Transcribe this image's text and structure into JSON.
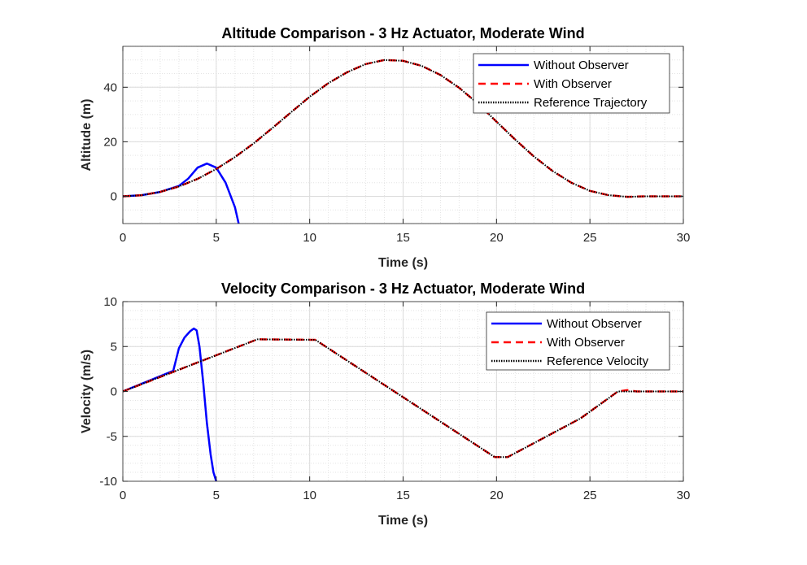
{
  "colors": {
    "without": "#0000ff",
    "with": "#ff0000",
    "reference": "#000000",
    "grid": "#dddddd",
    "axis": "#262626"
  },
  "chart_data": [
    {
      "type": "line",
      "title": "Altitude Comparison - 3 Hz Actuator, Moderate Wind",
      "xlabel": "Time (s)",
      "ylabel": "Altitude (m)",
      "xlim": [
        0,
        30
      ],
      "ylim": [
        -10,
        55
      ],
      "xticks": [
        0,
        5,
        10,
        15,
        20,
        25,
        30
      ],
      "yticks": [
        0,
        20,
        40
      ],
      "grid": "on, with minor grid",
      "legend_placement": "top-right",
      "series": [
        {
          "name": "Without Observer",
          "style": "solid",
          "color": "#0000ff",
          "x": [
            0,
            1,
            2,
            3,
            3.5,
            4,
            4.5,
            5,
            5.5,
            6,
            6.2
          ],
          "y": [
            0,
            0.4,
            1.6,
            3.8,
            6.5,
            10.5,
            12,
            10.5,
            5,
            -4,
            -10
          ]
        },
        {
          "name": "With Observer",
          "style": "dashed",
          "color": "#ff0000",
          "x": [
            0,
            1,
            2,
            3,
            4,
            5,
            6,
            7,
            8,
            9,
            10,
            11,
            12,
            13,
            14,
            15,
            16,
            17,
            18,
            19,
            20,
            21,
            22,
            23,
            24,
            25,
            26,
            27,
            28,
            29,
            30
          ],
          "y": [
            0,
            0.4,
            1.6,
            3.6,
            6.4,
            10,
            14.4,
            19.4,
            25,
            30.8,
            36.5,
            41.5,
            45.5,
            48.5,
            50,
            49.7,
            47.8,
            44.5,
            39.8,
            34,
            27.4,
            20.8,
            14.6,
            9.3,
            5,
            2,
            0.4,
            -0.2,
            0,
            0,
            0
          ]
        },
        {
          "name": "Reference Trajectory",
          "style": "dotted",
          "color": "#000000",
          "x": [
            0,
            1,
            2,
            3,
            4,
            5,
            6,
            7,
            8,
            9,
            10,
            11,
            12,
            13,
            14,
            15,
            16,
            17,
            18,
            19,
            20,
            21,
            22,
            23,
            24,
            25,
            26,
            27,
            28,
            29,
            30
          ],
          "y": [
            0,
            0.4,
            1.6,
            3.6,
            6.4,
            10,
            14.4,
            19.4,
            25,
            30.8,
            36.5,
            41.5,
            45.5,
            48.5,
            50,
            49.7,
            47.8,
            44.5,
            39.8,
            34,
            27.4,
            20.8,
            14.6,
            9.3,
            5,
            2,
            0.4,
            -0.2,
            0,
            0,
            0
          ]
        }
      ]
    },
    {
      "type": "line",
      "title": "Velocity Comparison - 3 Hz Actuator, Moderate Wind",
      "xlabel": "Time (s)",
      "ylabel": "Velocity (m/s)",
      "xlim": [
        0,
        30
      ],
      "ylim": [
        -10,
        10
      ],
      "xticks": [
        0,
        5,
        10,
        15,
        20,
        25,
        30
      ],
      "yticks": [
        -10,
        -5,
        0,
        5,
        10
      ],
      "grid": "on, with minor grid",
      "legend_placement": "top-right",
      "series": [
        {
          "name": "Without Observer",
          "style": "solid",
          "color": "#0000ff",
          "x": [
            0,
            2.7,
            3.0,
            3.3,
            3.6,
            3.8,
            3.95,
            4.1,
            4.3,
            4.5,
            4.7,
            4.85,
            5.0
          ],
          "y": [
            0,
            2.3,
            4.8,
            6.0,
            6.7,
            7.0,
            6.8,
            5.0,
            1.0,
            -3.5,
            -7.0,
            -9.0,
            -10
          ]
        },
        {
          "name": "With Observer",
          "style": "dashed",
          "color": "#ff0000",
          "x": [
            0,
            7.2,
            10.3,
            19.9,
            20.6,
            24.5,
            26.5,
            27,
            27.5,
            30
          ],
          "y": [
            0,
            5.8,
            5.75,
            -7.3,
            -7.3,
            -3,
            0,
            0.15,
            0,
            0
          ]
        },
        {
          "name": "Reference Velocity",
          "style": "dotted",
          "color": "#000000",
          "x": [
            0,
            7.2,
            10.3,
            19.9,
            20.6,
            24.5,
            26.5,
            30
          ],
          "y": [
            0,
            5.8,
            5.75,
            -7.3,
            -7.3,
            -3,
            0,
            0
          ]
        }
      ]
    }
  ]
}
